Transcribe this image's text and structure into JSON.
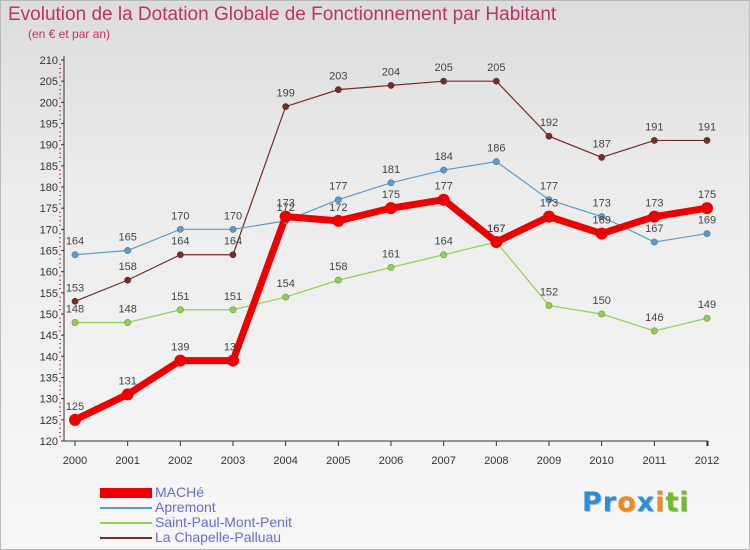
{
  "title": "Evolution de la Dotation Globale de Fonctionnement par Habitant",
  "subtitle": "(en € et par an)",
  "logo": {
    "text": "Proxiti",
    "letters": [
      "P",
      "r",
      "o",
      "x",
      "i",
      "t",
      "i"
    ],
    "colors": [
      "#2a8fd8",
      "#2a8fd8",
      "#f08a1a",
      "#2a8fd8",
      "#f08a1a",
      "#6cbf2a",
      "#6cbf2a"
    ]
  },
  "chart_data": {
    "type": "line",
    "title": "Evolution de la Dotation Globale de Fonctionnement par Habitant",
    "ylabel": "(en € et par an)",
    "xlabel": "",
    "ylim": [
      120,
      210
    ],
    "ytick_step": 5,
    "grid": false,
    "legend_position": "bottom-left",
    "categories": [
      "2000",
      "2001",
      "2002",
      "2003",
      "2004",
      "2005",
      "2006",
      "2007",
      "2008",
      "2009",
      "2010",
      "2011",
      "2012"
    ],
    "series": [
      {
        "name": "MACHé",
        "color": "#ee0000",
        "values": [
          125,
          131,
          139,
          139,
          173,
          172,
          175,
          177,
          167,
          173,
          169,
          173,
          175
        ]
      },
      {
        "name": "Apremont",
        "color": "#5a9bd0",
        "values": [
          164,
          165,
          170,
          170,
          172,
          177,
          181,
          184,
          186,
          177,
          173,
          167,
          169
        ]
      },
      {
        "name": "Saint-Paul-Mont-Penit",
        "color": "#8fd14f",
        "values": [
          148,
          148,
          151,
          151,
          154,
          158,
          161,
          164,
          167,
          152,
          150,
          146,
          149
        ]
      },
      {
        "name": "La Chapelle-Palluau",
        "color": "#7a2a2a",
        "values": [
          153,
          158,
          164,
          164,
          199,
          203,
          204,
          205,
          205,
          192,
          187,
          191,
          191
        ]
      }
    ]
  }
}
